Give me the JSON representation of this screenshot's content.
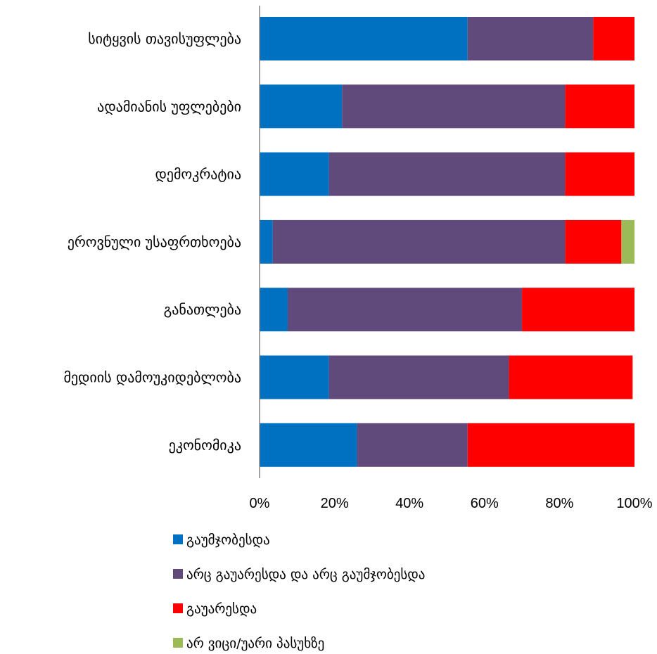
{
  "chart_data": {
    "type": "bar",
    "orientation": "horizontal",
    "stacked": "percent",
    "categories": [
      "სიტყვის თავისუფლება",
      "ადამიანის უფლებები",
      "დემოკრატია",
      "ეროვნული უსაფრთხოება",
      "განათლება",
      "მედიის დამოუკიდებლობა",
      "ეკონომიკა"
    ],
    "series": [
      {
        "name": "გაუმჯობესდა",
        "color": "#0070C0",
        "values": [
          55.5,
          22,
          18.5,
          3.5,
          7.5,
          18.5,
          26
        ]
      },
      {
        "name": "არც გაუარესდა და არც გაუმჯობესდა",
        "color": "#604A7B",
        "values": [
          33.5,
          59.5,
          63,
          78,
          62.5,
          48,
          29.5
        ]
      },
      {
        "name": "გაუარესდა",
        "color": "#FF0000",
        "values": [
          11,
          18.5,
          18.5,
          15,
          30,
          33,
          44.5
        ]
      },
      {
        "name": "არ ვიცი/უარი პასუხზე",
        "color": "#9BBB59",
        "values": [
          0,
          0,
          0,
          3.5,
          0,
          0,
          0
        ]
      }
    ],
    "xticks": [
      "0%",
      "20%",
      "40%",
      "60%",
      "80%",
      "100%"
    ],
    "xlim": [
      0,
      100
    ],
    "grid": false,
    "legend_position": "bottom"
  }
}
